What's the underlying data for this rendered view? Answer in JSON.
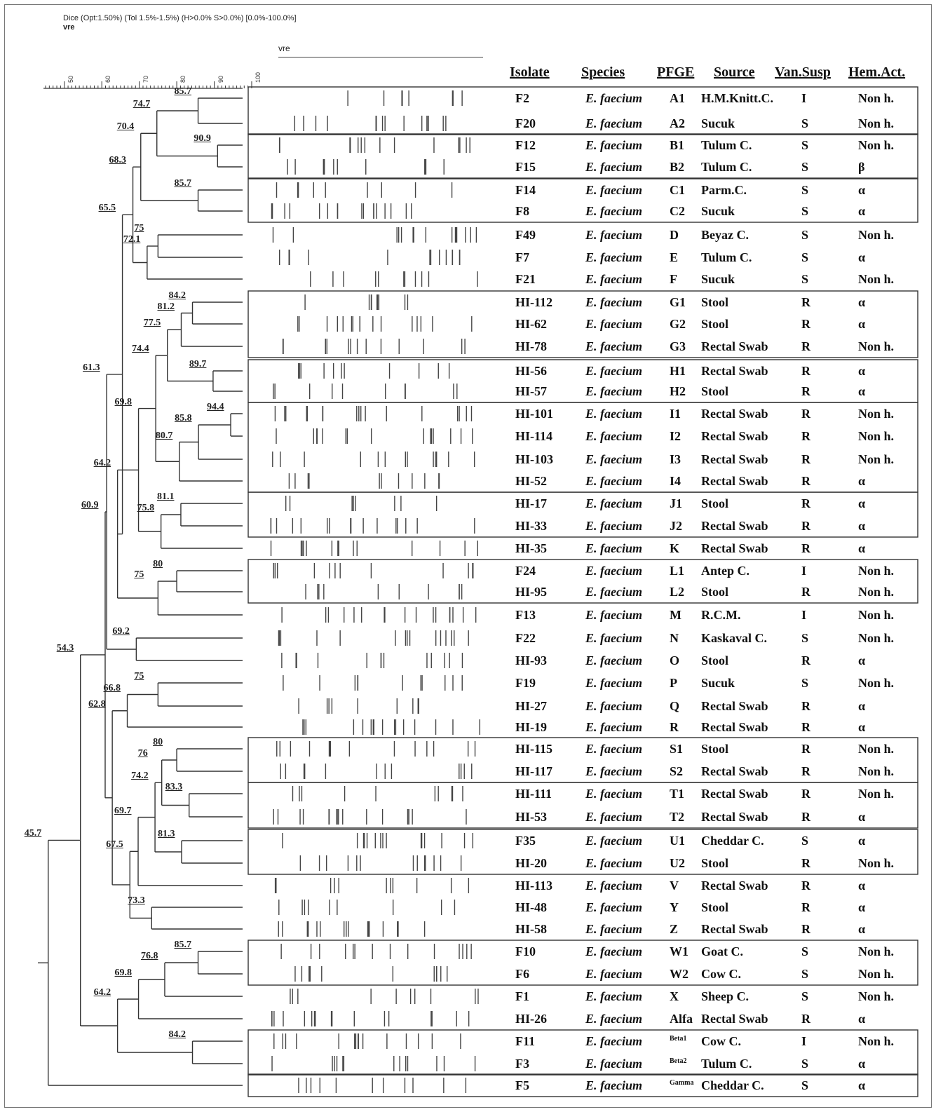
{
  "header": {
    "params": "Dice (Opt:1.50%) (Tol 1.5%-1.5%) (H>0.0% S>0.0%) [0.0%-100.0%]",
    "experiment": "vre",
    "gel_label": "vre"
  },
  "scale_ticks": [
    "50",
    "60",
    "70",
    "80",
    "90",
    "100"
  ],
  "columns": [
    "Isolate",
    "Species",
    "PFGE",
    "Source",
    "Van.Susp",
    "Hem.Act."
  ],
  "rows": [
    {
      "isolate": "F2",
      "species": "E. faecium",
      "pfge": "A1",
      "source": "H.M.Knitt.C.",
      "van": "I",
      "hem": "Non h."
    },
    {
      "isolate": "F20",
      "species": "E. faecium",
      "pfge": "A2",
      "source": "Sucuk",
      "van": "S",
      "hem": "Non h."
    },
    {
      "isolate": "F12",
      "species": "E. faecium",
      "pfge": "B1",
      "source": "Tulum C.",
      "van": "S",
      "hem": "Non h."
    },
    {
      "isolate": "F15",
      "species": "E. faecium",
      "pfge": "B2",
      "source": "Tulum C.",
      "van": "S",
      "hem": "β"
    },
    {
      "isolate": "F14",
      "species": "E. faecium",
      "pfge": "C1",
      "source": "Parm.C.",
      "van": "S",
      "hem": "α"
    },
    {
      "isolate": "F8",
      "species": "E. faecium",
      "pfge": "C2",
      "source": "Sucuk",
      "van": "S",
      "hem": "α"
    },
    {
      "isolate": "F49",
      "species": "E. faecium",
      "pfge": "D",
      "source": "Beyaz C.",
      "van": "S",
      "hem": "Non h."
    },
    {
      "isolate": "F7",
      "species": "E. faecium",
      "pfge": "E",
      "source": "Tulum C.",
      "van": "S",
      "hem": "α"
    },
    {
      "isolate": "F21",
      "species": "E. faecium",
      "pfge": "F",
      "source": "Sucuk",
      "van": "S",
      "hem": "Non h."
    },
    {
      "isolate": "HI-112",
      "species": "E. faecium",
      "pfge": "G1",
      "source": "Stool",
      "van": "R",
      "hem": "α"
    },
    {
      "isolate": "HI-62",
      "species": "E. faecium",
      "pfge": "G2",
      "source": "Stool",
      "van": "R",
      "hem": "α"
    },
    {
      "isolate": "HI-78",
      "species": "E. faecium",
      "pfge": "G3",
      "source": "Rectal Swab",
      "van": "R",
      "hem": "Non h."
    },
    {
      "isolate": "HI-56",
      "species": "E. faecium",
      "pfge": "H1",
      "source": "Rectal Swab",
      "van": "R",
      "hem": "α"
    },
    {
      "isolate": "HI-57",
      "species": "E. faecium",
      "pfge": "H2",
      "source": "Stool",
      "van": "R",
      "hem": "α"
    },
    {
      "isolate": "HI-101",
      "species": "E. faecium",
      "pfge": "I1",
      "source": "Rectal Swab",
      "van": "R",
      "hem": "Non h."
    },
    {
      "isolate": "HI-114",
      "species": "E. faecium",
      "pfge": "I2",
      "source": "Rectal Swab",
      "van": "R",
      "hem": "Non h."
    },
    {
      "isolate": "HI-103",
      "species": "E. faecium",
      "pfge": "I3",
      "source": "Rectal Swab",
      "van": "R",
      "hem": "Non h."
    },
    {
      "isolate": "HI-52",
      "species": "E. faecium",
      "pfge": "I4",
      "source": "Rectal Swab",
      "van": "R",
      "hem": "α"
    },
    {
      "isolate": "HI-17",
      "species": "E. faecium",
      "pfge": "J1",
      "source": "Stool",
      "van": "R",
      "hem": "α"
    },
    {
      "isolate": "HI-33",
      "species": "E. faecium",
      "pfge": "J2",
      "source": "Rectal Swab",
      "van": "R",
      "hem": "α"
    },
    {
      "isolate": "HI-35",
      "species": "E. faecium",
      "pfge": "K",
      "source": "Rectal Swab",
      "van": "R",
      "hem": "α"
    },
    {
      "isolate": "F24",
      "species": "E. faecium",
      "pfge": "L1",
      "source": "Antep C.",
      "van": "I",
      "hem": "Non h."
    },
    {
      "isolate": "HI-95",
      "species": "E. faecium",
      "pfge": "L2",
      "source": "Stool",
      "van": "R",
      "hem": "Non h."
    },
    {
      "isolate": "F13",
      "species": "E. faecium",
      "pfge": "M",
      "source": "R.C.M.",
      "van": "I",
      "hem": "Non h."
    },
    {
      "isolate": "F22",
      "species": "E. faecium",
      "pfge": "N",
      "source": "Kaskaval C.",
      "van": "S",
      "hem": "Non h."
    },
    {
      "isolate": "HI-93",
      "species": "E. faecium",
      "pfge": "O",
      "source": "Stool",
      "van": "R",
      "hem": "α"
    },
    {
      "isolate": "F19",
      "species": "E. faecium",
      "pfge": "P",
      "source": "Sucuk",
      "van": "S",
      "hem": "Non h."
    },
    {
      "isolate": "HI-27",
      "species": "E. faecium",
      "pfge": "Q",
      "source": "Rectal Swab",
      "van": "R",
      "hem": "α"
    },
    {
      "isolate": "HI-19",
      "species": "E. faecium",
      "pfge": "R",
      "source": "Rectal Swab",
      "van": "R",
      "hem": "α"
    },
    {
      "isolate": "HI-115",
      "species": "E. faecium",
      "pfge": "S1",
      "source": "Stool",
      "van": "R",
      "hem": "Non h."
    },
    {
      "isolate": "HI-117",
      "species": "E. faecium",
      "pfge": "S2",
      "source": "Rectal Swab",
      "van": "R",
      "hem": "Non h."
    },
    {
      "isolate": "HI-111",
      "species": "E. faecium",
      "pfge": "T1",
      "source": "Rectal Swab",
      "van": "R",
      "hem": "Non h."
    },
    {
      "isolate": "HI-53",
      "species": "E. faecium",
      "pfge": "T2",
      "source": "Rectal Swab",
      "van": "R",
      "hem": "α"
    },
    {
      "isolate": "F35",
      "species": "E. faecium",
      "pfge": "U1",
      "source": "Cheddar C.",
      "van": "S",
      "hem": "α"
    },
    {
      "isolate": "HI-20",
      "species": "E. faecium",
      "pfge": "U2",
      "source": "Stool",
      "van": "R",
      "hem": "Non h."
    },
    {
      "isolate": "HI-113",
      "species": "E. faecium",
      "pfge": "V",
      "source": "Rectal Swab",
      "van": "R",
      "hem": "α"
    },
    {
      "isolate": "HI-48",
      "species": "E. faecium",
      "pfge": "Y",
      "source": "Stool",
      "van": "R",
      "hem": "α"
    },
    {
      "isolate": "HI-58",
      "species": "E. faecium",
      "pfge": "Z",
      "source": "Rectal Swab",
      "van": "R",
      "hem": "α"
    },
    {
      "isolate": "F10",
      "species": "E. faecium",
      "pfge": "W1",
      "source": "Goat C.",
      "van": "S",
      "hem": "Non h."
    },
    {
      "isolate": "F6",
      "species": "E. faecium",
      "pfge": "W2",
      "source": "Cow C.",
      "van": "S",
      "hem": "Non h."
    },
    {
      "isolate": "F1",
      "species": "E. faecium",
      "pfge": "X",
      "source": "Sheep C.",
      "van": "S",
      "hem": "Non h."
    },
    {
      "isolate": "HI-26",
      "species": "E. faecium",
      "pfge": "Alfa",
      "source": "Rectal Swab",
      "van": "R",
      "hem": "α"
    },
    {
      "isolate": "F11",
      "species": "E. faecium",
      "pfge": "Beta1",
      "source": "Cow C.",
      "van": "I",
      "hem": "Non h."
    },
    {
      "isolate": "F3",
      "species": "E. faecium",
      "pfge": "Beta2",
      "source": "Tulum C.",
      "van": "S",
      "hem": "α"
    },
    {
      "isolate": "F5",
      "species": "E. faecium",
      "pfge": "Gamma",
      "source": "Cheddar C.",
      "van": "S",
      "hem": "α"
    }
  ],
  "small_pfge": [
    "Beta1",
    "Beta2",
    "Gamma"
  ],
  "boxed_groups": [
    [
      0,
      1
    ],
    [
      2,
      3
    ],
    [
      4,
      5
    ],
    [
      9,
      11
    ],
    [
      12,
      13
    ],
    [
      14,
      17
    ],
    [
      18,
      19
    ],
    [
      21,
      22
    ],
    [
      29,
      30
    ],
    [
      31,
      32
    ],
    [
      33,
      34
    ],
    [
      38,
      39
    ],
    [
      42,
      43
    ],
    [
      44,
      44
    ]
  ],
  "tree": {
    "leaves": [
      "F2",
      "F20",
      "F12",
      "F15",
      "F14",
      "F8",
      "F49",
      "F7",
      "F21",
      "HI-112",
      "HI-62",
      "HI-78",
      "HI-56",
      "HI-57",
      "HI-101",
      "HI-114",
      "HI-103",
      "HI-52",
      "HI-17",
      "HI-33",
      "HI-35",
      "F24",
      "HI-95",
      "F13",
      "F22",
      "HI-93",
      "F19",
      "HI-27",
      "HI-19",
      "HI-115",
      "HI-117",
      "HI-111",
      "HI-53",
      "F35",
      "HI-20",
      "HI-113",
      "HI-48",
      "HI-58",
      "F10",
      "F6",
      "F1",
      "HI-26",
      "F11",
      "F3",
      "F5"
    ],
    "nodes": [
      {
        "id": "n857a",
        "sim": 85.7,
        "label": "85.7",
        "c": [
          "L0",
          "L1"
        ]
      },
      {
        "id": "n909",
        "sim": 90.9,
        "label": "90.9",
        "c": [
          "L2",
          "L3"
        ]
      },
      {
        "id": "n747",
        "sim": 74.7,
        "label": "74.7",
        "c": [
          "n857a",
          "n909"
        ]
      },
      {
        "id": "n857b",
        "sim": 85.7,
        "label": "85.7",
        "c": [
          "L4",
          "L5"
        ]
      },
      {
        "id": "n704",
        "sim": 70.4,
        "label": "70.4",
        "c": [
          "n747",
          "n857b"
        ]
      },
      {
        "id": "n75a",
        "sim": 75,
        "label": "75",
        "c": [
          "L6",
          "L7"
        ]
      },
      {
        "id": "n721",
        "sim": 72.1,
        "label": "72.1",
        "c": [
          "n75a",
          "L8"
        ]
      },
      {
        "id": "n683",
        "sim": 68.3,
        "label": "68.3",
        "c": [
          "n704",
          "n721"
        ]
      },
      {
        "id": "n842a",
        "sim": 84.2,
        "label": "84.2",
        "c": [
          "L9",
          "L10"
        ]
      },
      {
        "id": "n812",
        "sim": 81.2,
        "label": "81.2",
        "c": [
          "n842a",
          "L11"
        ]
      },
      {
        "id": "n897",
        "sim": 89.7,
        "label": "89.7",
        "c": [
          "L12",
          "L13"
        ]
      },
      {
        "id": "n775",
        "sim": 77.5,
        "label": "77.5",
        "c": [
          "n812",
          "n897"
        ]
      },
      {
        "id": "n944",
        "sim": 94.4,
        "label": "94.4",
        "c": [
          "L14",
          "L15"
        ]
      },
      {
        "id": "n858",
        "sim": 85.8,
        "label": "85.8",
        "c": [
          "n944",
          "L16"
        ]
      },
      {
        "id": "n807",
        "sim": 80.7,
        "label": "80.7",
        "c": [
          "n858",
          "L17"
        ]
      },
      {
        "id": "n744",
        "sim": 74.4,
        "label": "74.4",
        "c": [
          "n775",
          "n807"
        ]
      },
      {
        "id": "n811",
        "sim": 81.1,
        "label": "81.1",
        "c": [
          "L18",
          "L19"
        ]
      },
      {
        "id": "n758",
        "sim": 75.8,
        "label": "75.8",
        "c": [
          "n811",
          "L20"
        ]
      },
      {
        "id": "n698",
        "sim": 69.8,
        "label": "69.8",
        "c": [
          "n744",
          "n758"
        ]
      },
      {
        "id": "n80a",
        "sim": 80,
        "label": "80",
        "c": [
          "L21",
          "L22"
        ]
      },
      {
        "id": "n75b",
        "sim": 75,
        "label": "75",
        "c": [
          "n80a",
          "L23"
        ]
      },
      {
        "id": "n642a",
        "sim": 64.2,
        "label": "64.2",
        "c": [
          "n698",
          "n75b"
        ]
      },
      {
        "id": "n655",
        "sim": 65.5,
        "label": "65.5",
        "c": [
          "n683",
          "n642a"
        ]
      },
      {
        "id": "n692",
        "sim": 69.2,
        "label": "69.2",
        "c": [
          "L24",
          "L25"
        ]
      },
      {
        "id": "n613",
        "sim": 61.3,
        "label": "61.3",
        "c": [
          "n655",
          "n692"
        ]
      },
      {
        "id": "n75c",
        "sim": 75,
        "label": "75",
        "c": [
          "L26",
          "L27"
        ]
      },
      {
        "id": "n668",
        "sim": 66.8,
        "label": "66.8",
        "c": [
          "n75c",
          "L28"
        ]
      },
      {
        "id": "n80b",
        "sim": 80,
        "label": "80",
        "c": [
          "L29",
          "L30"
        ]
      },
      {
        "id": "n833",
        "sim": 83.3,
        "label": "83.3",
        "c": [
          "L31",
          "L32"
        ]
      },
      {
        "id": "n76",
        "sim": 76,
        "label": "76",
        "c": [
          "n80b",
          "n833"
        ]
      },
      {
        "id": "n813",
        "sim": 81.3,
        "label": "81.3",
        "c": [
          "L33",
          "L34"
        ]
      },
      {
        "id": "n742",
        "sim": 74.2,
        "label": "74.2",
        "c": [
          "n76",
          "n813"
        ]
      },
      {
        "id": "n697",
        "sim": 69.7,
        "label": "69.7",
        "c": [
          "n742",
          "L35"
        ]
      },
      {
        "id": "n733",
        "sim": 73.3,
        "label": "73.3",
        "c": [
          "L36",
          "L37"
        ]
      },
      {
        "id": "n675",
        "sim": 67.5,
        "label": "67.5",
        "c": [
          "n697",
          "n733"
        ]
      },
      {
        "id": "n628",
        "sim": 62.8,
        "label": "62.8",
        "c": [
          "n668",
          "n675"
        ]
      },
      {
        "id": "n609",
        "sim": 60.9,
        "label": "60.9",
        "c": [
          "n613",
          "n628"
        ]
      },
      {
        "id": "n857c",
        "sim": 85.7,
        "label": "85.7",
        "c": [
          "L38",
          "L39"
        ]
      },
      {
        "id": "n768",
        "sim": 76.8,
        "label": "76.8",
        "c": [
          "n857c",
          "L40"
        ]
      },
      {
        "id": "n698b",
        "sim": 69.8,
        "label": "69.8",
        "c": [
          "n768",
          "L41"
        ]
      },
      {
        "id": "n842b",
        "sim": 84.2,
        "label": "84.2",
        "c": [
          "L42",
          "L43"
        ]
      },
      {
        "id": "n642b",
        "sim": 64.2,
        "label": "64.2",
        "c": [
          "n698b",
          "n842b"
        ]
      },
      {
        "id": "n543",
        "sim": 54.3,
        "label": "54.3",
        "c": [
          "n609",
          "n642b"
        ]
      },
      {
        "id": "n457",
        "sim": 45.7,
        "label": "45.7",
        "c": [
          "n543",
          "L44"
        ]
      }
    ]
  }
}
